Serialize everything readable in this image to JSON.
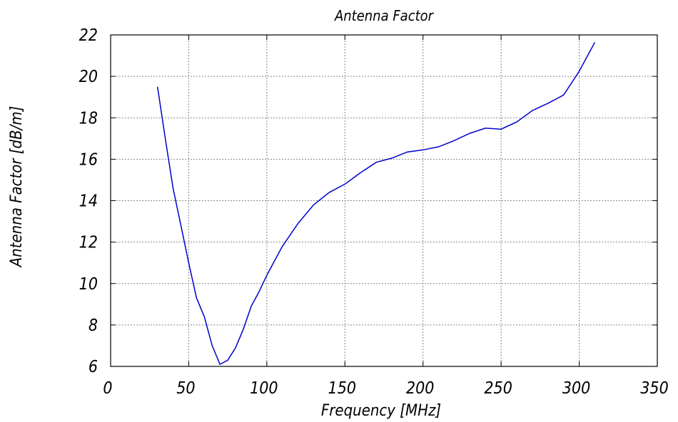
{
  "chart_data": {
    "type": "line",
    "title": "Antenna Factor",
    "xlabel": "Frequency [MHz]",
    "ylabel": "Antenna Factor [dB/m]",
    "xlim": [
      0,
      350
    ],
    "ylim": [
      6,
      22
    ],
    "xticks": [
      0,
      50,
      100,
      150,
      200,
      250,
      300,
      350
    ],
    "yticks": [
      6,
      8,
      10,
      12,
      14,
      16,
      18,
      20,
      22
    ],
    "grid": true,
    "line_color": "#0000cc",
    "series": [
      {
        "x": [
          30,
          35,
          40,
          45,
          50,
          55,
          60,
          65,
          70,
          75,
          80,
          85,
          90,
          95,
          100,
          110,
          120,
          130,
          140,
          150,
          160,
          170,
          180,
          190,
          200,
          210,
          220,
          230,
          240,
          250,
          260,
          270,
          280,
          290,
          300,
          310
        ],
        "y": [
          19.5,
          17.0,
          14.6,
          12.8,
          11.0,
          9.3,
          8.4,
          7.0,
          6.1,
          6.3,
          6.9,
          7.8,
          8.9,
          9.6,
          10.4,
          11.8,
          12.9,
          13.8,
          14.4,
          14.8,
          15.35,
          15.85,
          16.05,
          16.35,
          16.45,
          16.6,
          16.9,
          17.25,
          17.5,
          17.45,
          17.8,
          18.35,
          18.7,
          19.1,
          20.25,
          21.65
        ]
      }
    ]
  }
}
